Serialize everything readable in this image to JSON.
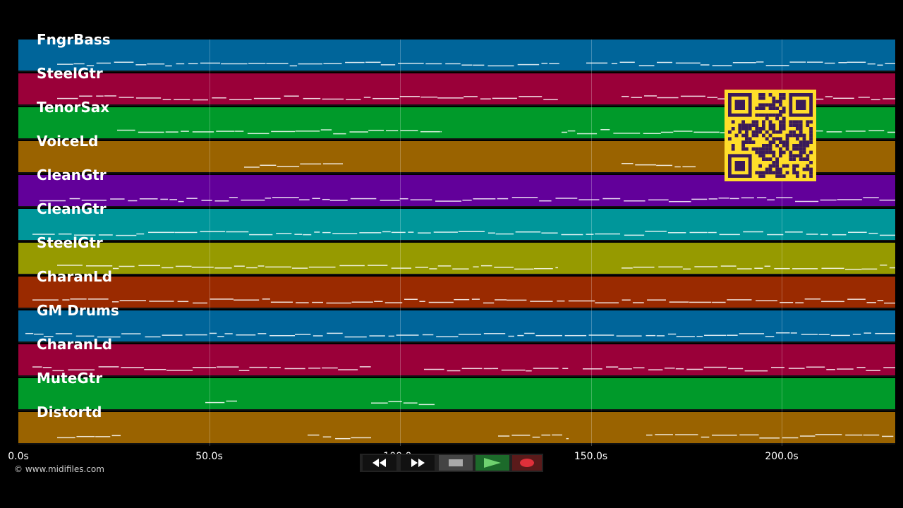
{
  "tracks": [
    {
      "name": "FngrBass",
      "color": "#00659a"
    },
    {
      "name": "SteelGtr",
      "color": "#9a0039"
    },
    {
      "name": "TenorSax",
      "color": "#009a2a"
    },
    {
      "name": "VoiceLd",
      "color": "#9a6300"
    },
    {
      "name": "CleanGtr",
      "color": "#62009a"
    },
    {
      "name": "CleanGtr",
      "color": "#00969a"
    },
    {
      "name": "SteelGtr",
      "color": "#969a00"
    },
    {
      "name": "CharanLd",
      "color": "#9a2a00"
    },
    {
      "name": "GM Drums",
      "color": "#00659a"
    },
    {
      "name": "CharanLd",
      "color": "#9a0039"
    },
    {
      "name": "MuteGtr",
      "color": "#009a2a"
    },
    {
      "name": "Distortd",
      "color": "#9a6300"
    }
  ],
  "timeline": {
    "ticks": [
      "0.0s",
      "50.0s",
      "100.0s",
      "150.0s",
      "200.0s"
    ],
    "tick_seconds": [
      0,
      50,
      100,
      150,
      200
    ],
    "max_seconds": 230
  },
  "copyright": "© www.midifiles.com",
  "transport": {
    "rewind": "rewind-icon",
    "forward": "fast-forward-icon",
    "stop": "stop-icon",
    "play": "play-icon",
    "record": "record-icon"
  }
}
